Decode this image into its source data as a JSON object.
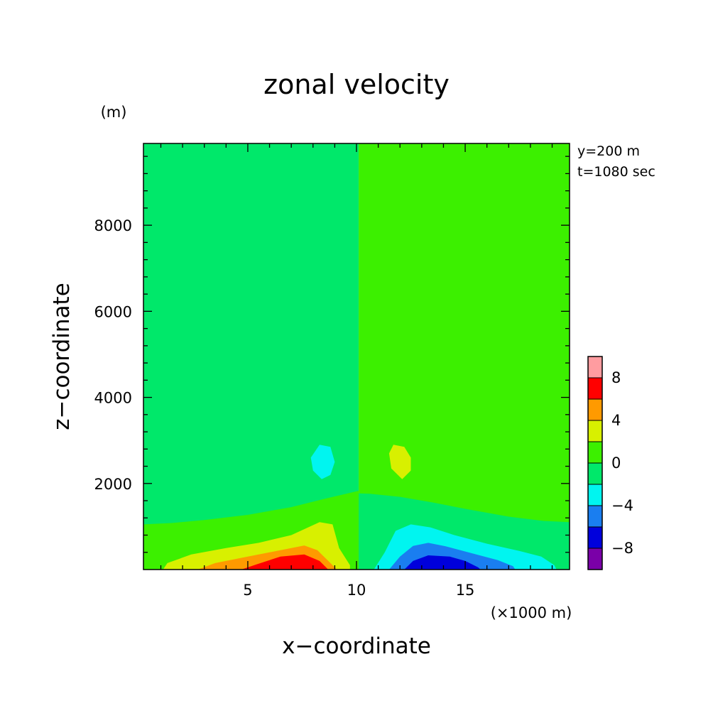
{
  "chart_data": {
    "type": "heatmap",
    "subtype": "filled-contour",
    "title": "zonal velocity",
    "xlabel": "x−coordinate",
    "ylabel": "z−coordinate",
    "x_unit": "(×1000 m)",
    "y_unit": "(m)",
    "annotations": [
      "y=200 m",
      "t=1080 sec"
    ],
    "xlim": [
      0.2,
      19.8
    ],
    "ylim": [
      0,
      9900
    ],
    "x_ticks": [
      5,
      10,
      15
    ],
    "y_ticks": [
      2000,
      4000,
      6000,
      8000
    ],
    "grid": false,
    "colorbar": {
      "placement": "right",
      "boundaries": [
        -10,
        -8,
        -6,
        -4,
        -2,
        0,
        2,
        4,
        6,
        8,
        10
      ],
      "labels": [
        "-8",
        "-4",
        "0",
        "4",
        "8"
      ],
      "label_values": [
        -8,
        -4,
        0,
        4,
        8
      ],
      "colors": [
        "#7a00a8",
        "#0000dc",
        "#1a7ef0",
        "#00f5f0",
        "#00e86a",
        "#3cf000",
        "#d8f000",
        "#ff9a00",
        "#ff0000",
        "#ff9ca0"
      ]
    },
    "background_fields": [
      {
        "x_range": [
          0.2,
          10.1
        ],
        "level_range": [
          -2,
          0
        ]
      },
      {
        "x_range": [
          10.1,
          19.8
        ],
        "level_range": [
          0,
          2
        ]
      }
    ],
    "contour_regions": [
      {
        "name": "lower-left 0..2",
        "level_range": [
          0,
          2
        ],
        "points": [
          [
            0.2,
            1050
          ],
          [
            1.5,
            1080
          ],
          [
            3,
            1150
          ],
          [
            5,
            1270
          ],
          [
            7,
            1450
          ],
          [
            8.5,
            1640
          ],
          [
            9.6,
            1770
          ],
          [
            10.1,
            1830
          ],
          [
            10.1,
            0
          ],
          [
            0.2,
            0
          ]
        ]
      },
      {
        "name": "lower-right -2..0",
        "level_range": [
          -2,
          0
        ],
        "points": [
          [
            10.1,
            1770
          ],
          [
            10.6,
            1760
          ],
          [
            12,
            1690
          ],
          [
            13.5,
            1560
          ],
          [
            15,
            1410
          ],
          [
            17,
            1230
          ],
          [
            18.6,
            1130
          ],
          [
            19.8,
            1100
          ],
          [
            19.8,
            0
          ],
          [
            10.1,
            0
          ]
        ]
      },
      {
        "name": "positive 2..4",
        "level_range": [
          2,
          4
        ],
        "points": [
          [
            1.1,
            0
          ],
          [
            1.3,
            150
          ],
          [
            2.4,
            350
          ],
          [
            4,
            500
          ],
          [
            5.5,
            620
          ],
          [
            7,
            800
          ],
          [
            8.3,
            1100
          ],
          [
            8.9,
            1050
          ],
          [
            9.2,
            500
          ],
          [
            9.7,
            100
          ],
          [
            9.7,
            0
          ]
        ]
      },
      {
        "name": "positive 4..6",
        "level_range": [
          4,
          6
        ],
        "points": [
          [
            2.7,
            0
          ],
          [
            3.5,
            150
          ],
          [
            5,
            300
          ],
          [
            6.5,
            450
          ],
          [
            7.6,
            560
          ],
          [
            8.2,
            450
          ],
          [
            8.8,
            150
          ],
          [
            9.1,
            0
          ]
        ]
      },
      {
        "name": "positive 6..8",
        "level_range": [
          6,
          8
        ],
        "points": [
          [
            4.7,
            0
          ],
          [
            5.4,
            120
          ],
          [
            6.5,
            300
          ],
          [
            7.6,
            350
          ],
          [
            8.3,
            200
          ],
          [
            8.7,
            0
          ]
        ]
      },
      {
        "name": "negative -4..-2",
        "level_range": [
          -4,
          -2
        ],
        "points": [
          [
            10.8,
            0
          ],
          [
            11.3,
            400
          ],
          [
            11.8,
            900
          ],
          [
            12.5,
            1050
          ],
          [
            13.4,
            980
          ],
          [
            14.5,
            800
          ],
          [
            16,
            600
          ],
          [
            17.5,
            430
          ],
          [
            18.5,
            300
          ],
          [
            19.1,
            100
          ],
          [
            19.2,
            0
          ]
        ]
      },
      {
        "name": "negative -6..-4",
        "level_range": [
          -6,
          -4
        ],
        "points": [
          [
            11.5,
            0
          ],
          [
            12,
            300
          ],
          [
            12.6,
            550
          ],
          [
            13.3,
            620
          ],
          [
            14.1,
            540
          ],
          [
            15.3,
            380
          ],
          [
            16.5,
            220
          ],
          [
            17.2,
            80
          ],
          [
            17.3,
            0
          ]
        ]
      },
      {
        "name": "negative -8..-6",
        "level_range": [
          -8,
          -6
        ],
        "points": [
          [
            12.2,
            0
          ],
          [
            12.6,
            200
          ],
          [
            13.3,
            330
          ],
          [
            14.3,
            300
          ],
          [
            15,
            200
          ],
          [
            15.6,
            50
          ],
          [
            15.7,
            0
          ]
        ]
      },
      {
        "name": "cyan blob",
        "level_range": [
          -4,
          -2
        ],
        "points": [
          [
            8.3,
            2900
          ],
          [
            8.8,
            2850
          ],
          [
            9,
            2500
          ],
          [
            8.8,
            2200
          ],
          [
            8.4,
            2100
          ],
          [
            8.0,
            2300
          ],
          [
            7.9,
            2600
          ]
        ]
      },
      {
        "name": "yellow blob",
        "level_range": [
          2,
          4
        ],
        "points": [
          [
            11.7,
            2900
          ],
          [
            12.2,
            2850
          ],
          [
            12.5,
            2600
          ],
          [
            12.5,
            2300
          ],
          [
            12.1,
            2100
          ],
          [
            11.6,
            2350
          ],
          [
            11.5,
            2700
          ]
        ]
      }
    ]
  }
}
